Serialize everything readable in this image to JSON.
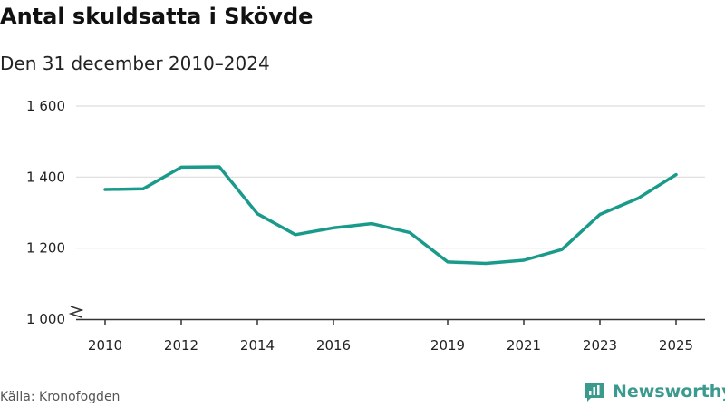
{
  "chart_data": {
    "type": "line",
    "title": "Antal skuldsatta i Skövde",
    "subtitle": "Den 31 december 2010–2024",
    "xlabel": "",
    "ylabel": "",
    "x": [
      2010,
      2011,
      2012,
      2013,
      2014,
      2015,
      2016,
      2017,
      2018,
      2019,
      2020,
      2021,
      2022,
      2023,
      2024,
      2025
    ],
    "values": [
      1365,
      1367,
      1428,
      1429,
      1297,
      1238,
      1257,
      1269,
      1244,
      1161,
      1157,
      1166,
      1196,
      1295,
      1340,
      1407
    ],
    "xlim": [
      2010,
      2025
    ],
    "ylim": [
      1000,
      1600
    ],
    "yticks": [
      1000,
      1200,
      1400,
      1600
    ],
    "ytick_labels": [
      "1 000",
      "1 200",
      "1 400",
      "1 600"
    ],
    "xticks": [
      2010,
      2012,
      2014,
      2016,
      2019,
      2021,
      2023,
      2025
    ],
    "xtick_labels": [
      "2010",
      "2012",
      "2014",
      "2016",
      "2019",
      "2021",
      "2023",
      "2025"
    ],
    "line_color": "#1a9a8a",
    "grid": true,
    "y_axis_break": true
  },
  "footer": {
    "source": "Källa: Kronofogden",
    "brand": "Newsworthy",
    "brand_icon": "newsworthy-logo-icon",
    "brand_color": "#3a9a8e"
  }
}
